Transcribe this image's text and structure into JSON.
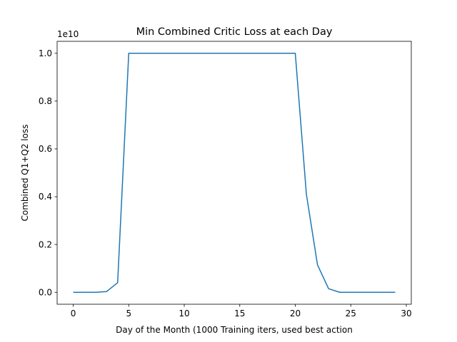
{
  "chart_data": {
    "type": "line",
    "title": "Min Combined Critic Loss at each Day",
    "xlabel": "Day of the Month (1000 Training iters, used best action",
    "ylabel": "Combined Q1+Q2 loss",
    "y_offset_label": "1e10",
    "y_scale_factor": 10000000000,
    "xlim": [
      -1.45,
      30.45
    ],
    "ylim": [
      -0.05,
      1.05
    ],
    "x_ticks": [
      0,
      5,
      10,
      15,
      20,
      25,
      30
    ],
    "x_tick_labels": [
      "0",
      "5",
      "10",
      "15",
      "20",
      "25",
      "30"
    ],
    "y_ticks": [
      0.0,
      0.2,
      0.4,
      0.6,
      0.8,
      1.0
    ],
    "y_tick_labels": [
      "0.0",
      "0.2",
      "0.4",
      "0.6",
      "0.8",
      "1.0"
    ],
    "grid": false,
    "series": [
      {
        "color": "#1f77b4",
        "x": [
          0,
          1,
          2,
          3,
          4,
          5,
          6,
          7,
          8,
          9,
          10,
          11,
          12,
          13,
          14,
          15,
          16,
          17,
          18,
          19,
          20,
          21,
          22,
          23,
          24,
          25,
          26,
          27,
          28,
          29
        ],
        "y": [
          0.0,
          0.0,
          0.0,
          0.003,
          0.04,
          1.0,
          1.0,
          1.0,
          1.0,
          1.0,
          1.0,
          1.0,
          1.0,
          1.0,
          1.0,
          1.0,
          1.0,
          1.0,
          1.0,
          1.0,
          1.0,
          0.41,
          0.115,
          0.015,
          0.0,
          0.0,
          0.0,
          0.0,
          0.0,
          0.0
        ]
      }
    ]
  }
}
